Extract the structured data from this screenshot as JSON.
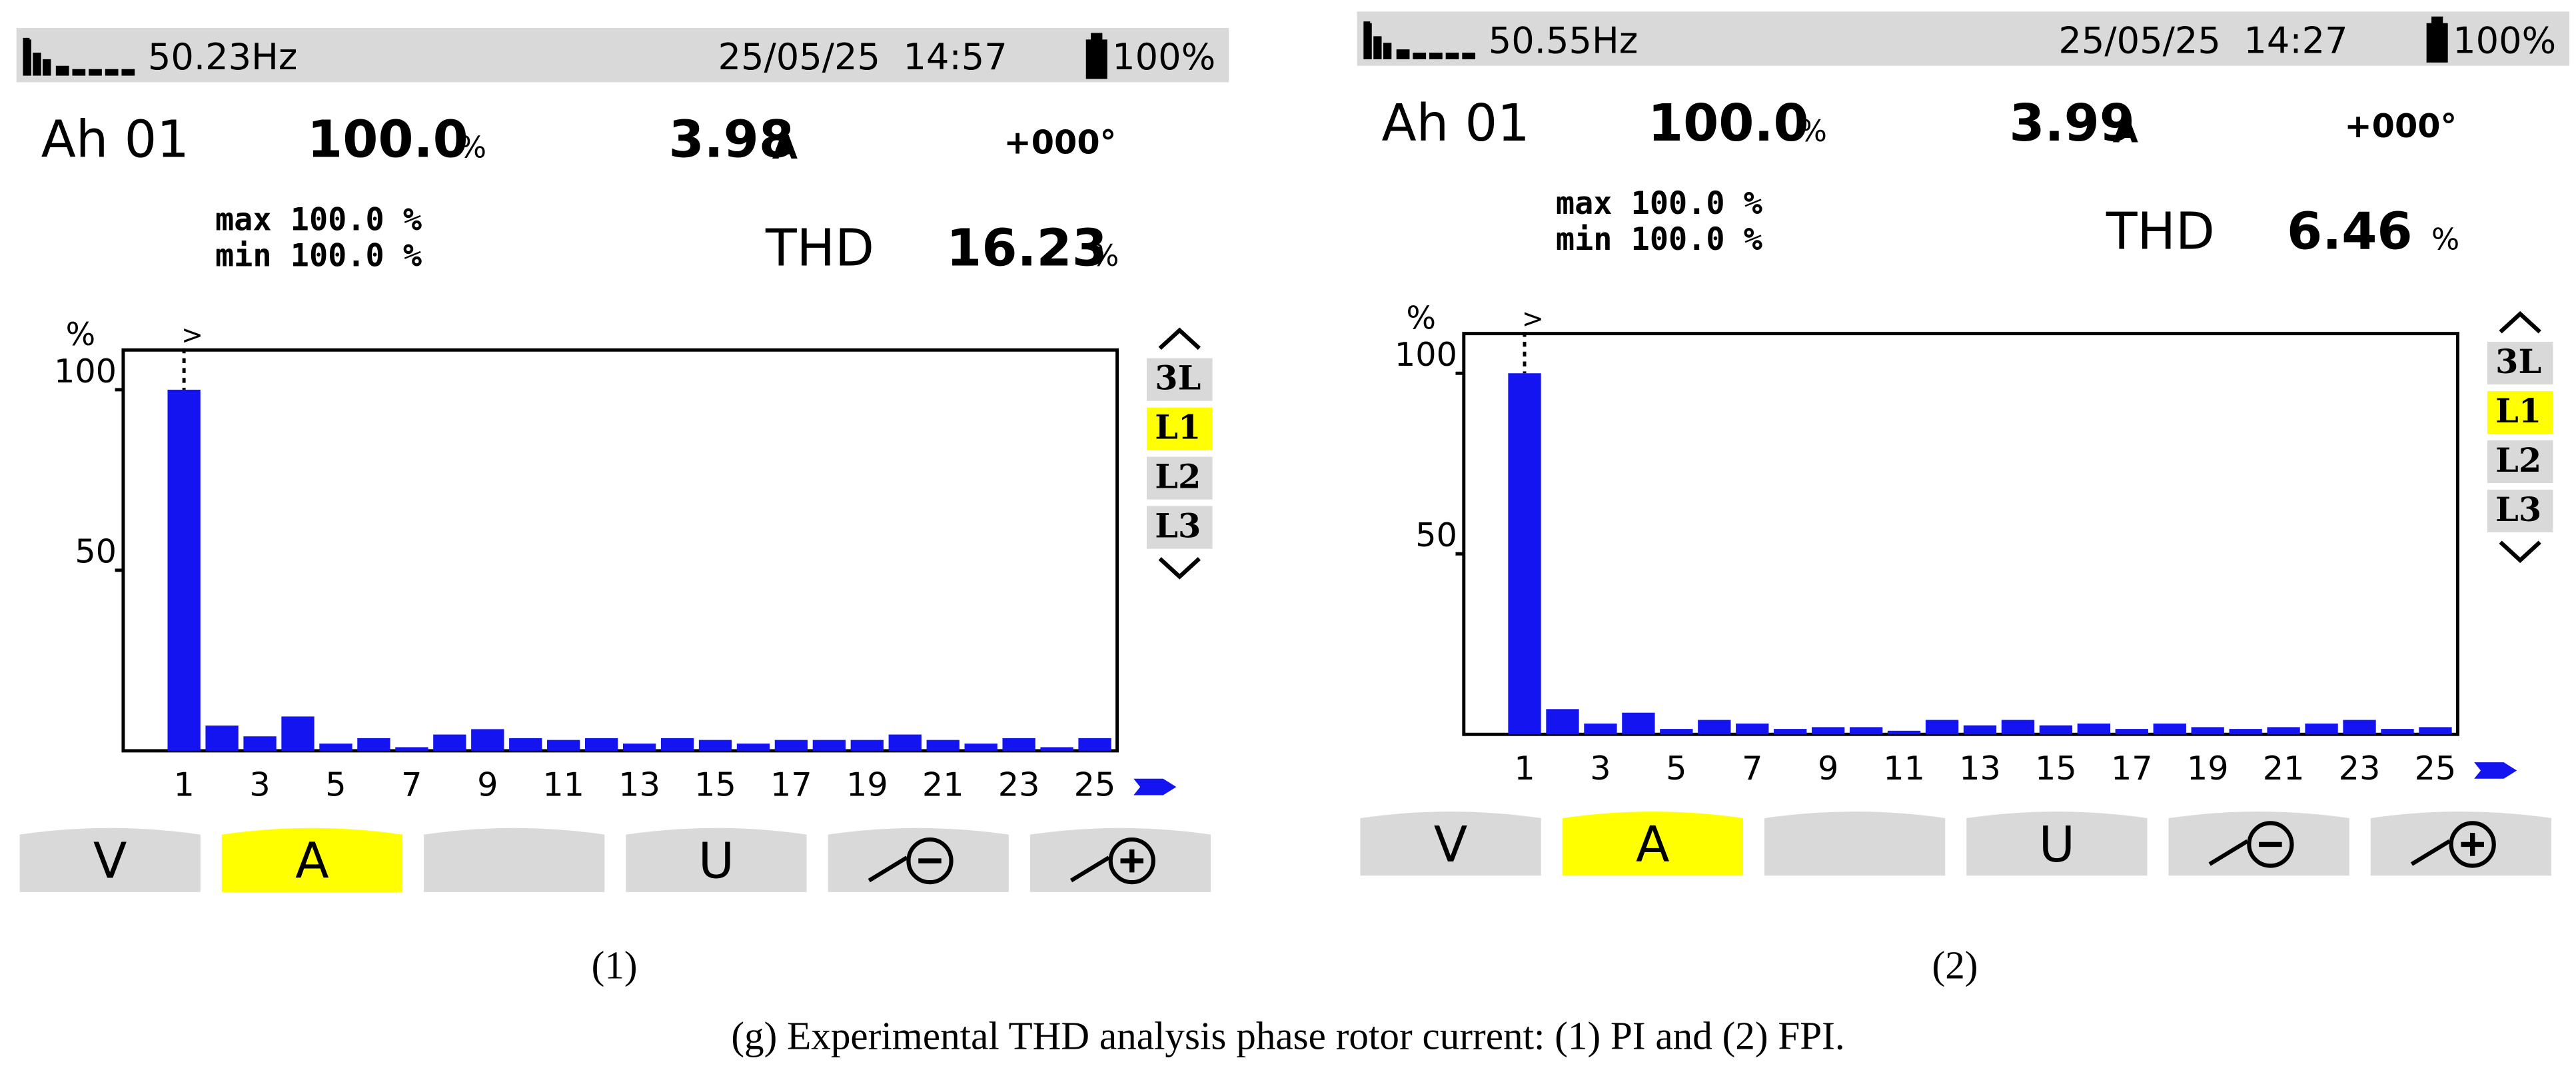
{
  "chart_data": [
    {
      "type": "bar",
      "status": {
        "frequency": "50.23Hz",
        "datetime": "25/05/25  14:57",
        "battery": "100%"
      },
      "readings": {
        "mode": "Ah 01",
        "percent": "100.0",
        "percent_unit": "%",
        "current": "3.98",
        "current_unit": "A",
        "phase": "+000°",
        "max": "max 100.0 %",
        "min": "min 100.0 %",
        "thd_label": "THD",
        "thd": "16.23",
        "thd_unit": "%"
      },
      "y_label": "%",
      "marker": ">",
      "categories": [
        1,
        null,
        3,
        null,
        5,
        null,
        7,
        null,
        9,
        null,
        11,
        null,
        13,
        null,
        15,
        null,
        17,
        null,
        19,
        null,
        21,
        null,
        23,
        null,
        25
      ],
      "values": [
        100,
        7,
        4,
        9.5,
        2,
        3.5,
        1,
        4.5,
        6,
        3.5,
        3,
        3.5,
        2,
        3.5,
        3,
        2,
        3,
        3,
        3,
        4.5,
        3,
        2,
        3.5,
        1,
        3.5
      ],
      "color": "#1414f0",
      "ylim": [
        0,
        111
      ],
      "yticks": [
        50,
        100
      ],
      "phase_buttons": [
        "3L",
        "L1",
        "L2",
        "L3"
      ],
      "selected_phase": 1,
      "mode_buttons": [
        "V",
        "A",
        "U"
      ],
      "selected_mode": 1,
      "panel_label": "(1)"
    },
    {
      "type": "bar",
      "status": {
        "frequency": "50.55Hz",
        "datetime": "25/05/25  14:27",
        "battery": "100%"
      },
      "readings": {
        "mode": "Ah 01",
        "percent": "100.0",
        "percent_unit": "%",
        "current": "3.99",
        "current_unit": "A",
        "phase": "+000°",
        "max": "max 100.0 %",
        "min": "min 100.0 %",
        "thd_label": "THD",
        "thd": "6.46",
        "thd_unit": "%"
      },
      "y_label": "%",
      "marker": ">",
      "categories": [
        1,
        null,
        3,
        null,
        5,
        null,
        7,
        null,
        9,
        null,
        11,
        null,
        13,
        null,
        15,
        null,
        17,
        null,
        19,
        null,
        21,
        null,
        23,
        null,
        25
      ],
      "values": [
        100,
        7,
        3,
        6,
        1.5,
        4,
        3,
        1.5,
        2,
        2,
        1,
        4,
        2.5,
        4,
        2.5,
        3,
        1.5,
        3,
        2,
        1.5,
        2,
        3,
        4,
        1.5,
        2
      ],
      "color": "#1414f0",
      "ylim": [
        0,
        111
      ],
      "yticks": [
        50,
        100
      ],
      "phase_buttons": [
        "3L",
        "L1",
        "L2",
        "L3"
      ],
      "selected_phase": 1,
      "mode_buttons": [
        "V",
        "A",
        "U"
      ],
      "selected_mode": 1,
      "panel_label": "(2)"
    }
  ],
  "caption": "(g) Experimental THD analysis phase rotor current: (1) PI and (2) FPI."
}
